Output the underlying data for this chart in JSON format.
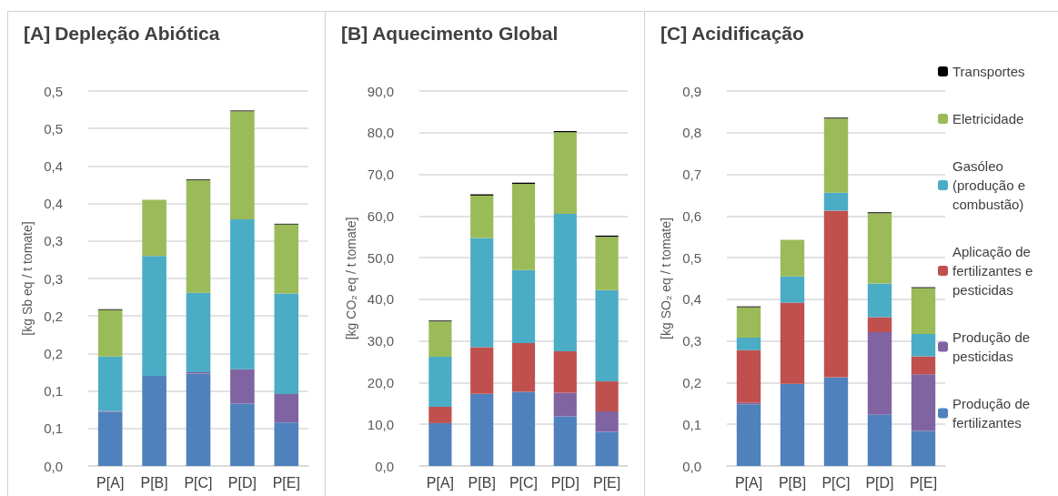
{
  "chart_data": [
    {
      "type": "bar",
      "title": "[A] Depleção Abiótica",
      "ylabel": "[kg Sb eq / t tomate]",
      "categories": [
        "P[A]",
        "P[B]",
        "P[C]",
        "P[D]",
        "P[E]"
      ],
      "stacked": true,
      "grid": "y",
      "ylim": [
        0,
        0.5
      ],
      "yticks": [
        {
          "value": 0,
          "label": "0,0"
        },
        {
          "value": 0.05,
          "label": "0,1"
        },
        {
          "value": 0.1,
          "label": "0,1"
        },
        {
          "value": 0.15,
          "label": "0,2"
        },
        {
          "value": 0.2,
          "label": "0,2"
        },
        {
          "value": 0.25,
          "label": "0,3"
        },
        {
          "value": 0.3,
          "label": "0,3"
        },
        {
          "value": 0.35,
          "label": "0,4"
        },
        {
          "value": 0.4,
          "label": "0,4"
        },
        {
          "value": 0.45,
          "label": "0,5"
        },
        {
          "value": 0.5,
          "label": "0,5"
        }
      ],
      "series": [
        {
          "color": "#4f81bd",
          "values": [
            0.072,
            0.12,
            0.123,
            0.083,
            0.058
          ]
        },
        {
          "color": "#8064a2",
          "values": [
            0.001,
            0,
            0.002,
            0.046,
            0.038
          ]
        },
        {
          "color": "#c0504d",
          "values": [
            0,
            0,
            0,
            0,
            0
          ]
        },
        {
          "color": "#4bacc6",
          "values": [
            0.073,
            0.16,
            0.106,
            0.2,
            0.134
          ]
        },
        {
          "color": "#9bbb59",
          "values": [
            0.062,
            0.075,
            0.15,
            0.144,
            0.092
          ]
        },
        {
          "color": "#000000",
          "values": [
            0.001,
            null,
            0.001,
            0.001,
            0.001
          ]
        }
      ]
    },
    {
      "type": "bar",
      "title": "[B] Aquecimento Global",
      "ylabel": "[kg CO₂ eq / t tomate]",
      "categories": [
        "P[A]",
        "P[B]",
        "P[C]",
        "P[D]",
        "P[E]"
      ],
      "stacked": true,
      "grid": "y",
      "ylim": [
        0,
        90
      ],
      "yticks": [
        {
          "value": 0,
          "label": "0,0"
        },
        {
          "value": 10,
          "label": "10,0"
        },
        {
          "value": 20,
          "label": "20,0"
        },
        {
          "value": 30,
          "label": "30,0"
        },
        {
          "value": 40,
          "label": "40,0"
        },
        {
          "value": 50,
          "label": "50,0"
        },
        {
          "value": 60,
          "label": "60,0"
        },
        {
          "value": 70,
          "label": "70,0"
        },
        {
          "value": 80,
          "label": "80,0"
        },
        {
          "value": 90,
          "label": "90,0"
        }
      ],
      "series": [
        {
          "color": "#4f81bd",
          "values": [
            10.3,
            17.3,
            17.8,
            11.9,
            8.2
          ]
        },
        {
          "color": "#8064a2",
          "values": [
            0,
            0,
            0,
            5.7,
            4.9
          ]
        },
        {
          "color": "#c0504d",
          "values": [
            3.9,
            11.2,
            11.7,
            9.9,
            7.2
          ]
        },
        {
          "color": "#4bacc6",
          "values": [
            12.0,
            26.2,
            17.5,
            33.0,
            21.9
          ]
        },
        {
          "color": "#9bbb59",
          "values": [
            8.5,
            10.2,
            20.7,
            19.6,
            12.8
          ]
        },
        {
          "color": "#000000",
          "values": [
            0.2,
            0.3,
            0.3,
            0.3,
            0.3
          ]
        }
      ]
    },
    {
      "type": "bar",
      "title": "[C] Acidificação",
      "ylabel": "[kg SO₂ eq / t tomate]",
      "categories": [
        "P[A]",
        "P[B]",
        "P[C]",
        "P[D]",
        "P[E]"
      ],
      "stacked": true,
      "grid": "y",
      "legend": "right",
      "ylim": [
        0,
        0.9
      ],
      "yticks": [
        {
          "value": 0,
          "label": "0,0"
        },
        {
          "value": 0.1,
          "label": "0,1"
        },
        {
          "value": 0.2,
          "label": "0,2"
        },
        {
          "value": 0.3,
          "label": "0,3"
        },
        {
          "value": 0.4,
          "label": "0,4"
        },
        {
          "value": 0.5,
          "label": "0,5"
        },
        {
          "value": 0.6,
          "label": "0,6"
        },
        {
          "value": 0.7,
          "label": "0,7"
        },
        {
          "value": 0.8,
          "label": "0,8"
        },
        {
          "value": 0.9,
          "label": "0,9"
        }
      ],
      "series": [
        {
          "name": "Produção de fertilizantes",
          "color": "#4f81bd",
          "values": [
            0.148,
            0.197,
            0.212,
            0.123,
            0.084
          ]
        },
        {
          "name": "Produção de pesticidas",
          "color": "#8064a2",
          "values": [
            0.004,
            0,
            0.001,
            0.198,
            0.136
          ]
        },
        {
          "name": "Aplicação de fertilizantes e pesticidas",
          "color": "#c0504d",
          "values": [
            0.126,
            0.195,
            0.4,
            0.036,
            0.043
          ]
        },
        {
          "name": "Gasóleo (produção e combustão)",
          "color": "#4bacc6",
          "values": [
            0.03,
            0.063,
            0.043,
            0.081,
            0.054
          ]
        },
        {
          "name": "Eletricidade",
          "color": "#9bbb59",
          "values": [
            0.073,
            0.088,
            0.178,
            0.169,
            0.11
          ]
        },
        {
          "name": "Transportes",
          "color": "#000000",
          "values": [
            0.002,
            null,
            0.002,
            0.002,
            0.002
          ]
        }
      ]
    }
  ]
}
